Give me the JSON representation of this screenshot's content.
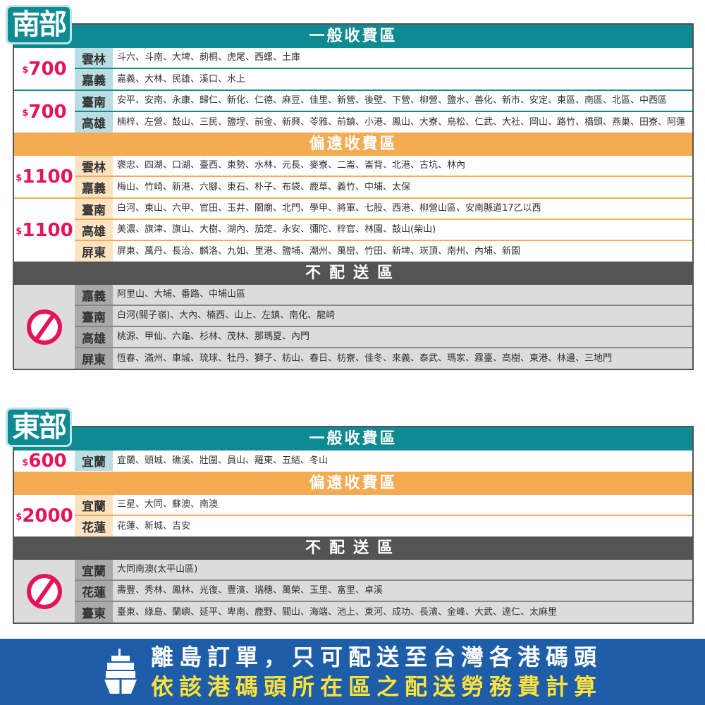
{
  "sections": [
    {
      "title": "南部",
      "blocks": [
        {
          "type": "general",
          "title": "一般收費區",
          "groups": [
            {
              "price": "700",
              "rows": [
                {
                  "county": "雲林",
                  "towns": "斗六、斗南、大埤、莿桐、虎尾、西螺、土庫"
                },
                {
                  "county": "嘉義",
                  "towns": "嘉義、大林、民雄、溪口、水上"
                }
              ]
            },
            {
              "price": "700",
              "rows": [
                {
                  "county": "臺南",
                  "towns": "安平、安南、永康、歸仁、新化、仁德、麻豆、佳里、新營、後壁、下營、柳營、鹽水、善化、新市、安定、東區、南區、北區、中西區"
                },
                {
                  "county": "高雄",
                  "towns": "楠梓、左營、鼓山、三民、鹽埕、前金、新興、苓雅、前鎮、小港、鳳山、大寮、鳥松、仁武、大社、岡山、路竹、橋頭、燕巢、田寮、阿蓮"
                }
              ]
            }
          ]
        },
        {
          "type": "remote",
          "title": "偏遠收費區",
          "groups": [
            {
              "price": "1100",
              "rows": [
                {
                  "county": "雲林",
                  "towns": "褒忠、四湖、口湖、臺西、東勢、水林、元長、麥寮、二崙、崙背、北港、古坑、林內"
                },
                {
                  "county": "嘉義",
                  "towns": "梅山、竹崎、新港、六腳、東石、朴子、布袋、鹿草、義竹、中埔、太保"
                }
              ]
            },
            {
              "price": "1100",
              "rows": [
                {
                  "county": "臺南",
                  "towns": "白河、東山、六甲、官田、玉井、關廟、北門、學甲、將軍、七股、西港、柳營山區、安南縣道17乙以西"
                },
                {
                  "county": "高雄",
                  "towns": "美濃、旗津、旗山、大樹、湖內、茄萣、永安、彌陀、梓官、林園、鼓山(柴山)"
                },
                {
                  "county": "屏東",
                  "towns": "屏東、萬丹、長治、麟洛、九如、里港、鹽埔、潮州、萬巒、竹田、新埤、崁頂、南州、內埔、新園"
                }
              ]
            }
          ]
        },
        {
          "type": "none",
          "title": "不配送區",
          "groups": [
            {
              "price": null,
              "rows": [
                {
                  "county": "嘉義",
                  "towns": "阿里山、大埔、番路、中埔山區"
                },
                {
                  "county": "臺南",
                  "towns": "白河(關子嶺)、大內、楠西、山上、左鎮、南化、龍崎"
                },
                {
                  "county": "高雄",
                  "towns": "桃源、甲仙、六龜、杉林、茂林、那瑪夏、內門"
                },
                {
                  "county": "屏東",
                  "towns": "恆春、滿州、車城、琉球、牡丹、獅子、枋山、春日、枋寮、佳冬、來義、泰武、瑪家、霧臺、高樹、東港、林邊、三地門"
                }
              ]
            }
          ]
        }
      ]
    },
    {
      "title": "東部",
      "blocks": [
        {
          "type": "general",
          "title": "一般收費區",
          "groups": [
            {
              "price": "600",
              "rows": [
                {
                  "county": "宜蘭",
                  "towns": "宜蘭、頭城、礁溪、壯圍、員山、羅東、五結、冬山"
                }
              ]
            }
          ]
        },
        {
          "type": "remote",
          "title": "偏遠收費區",
          "groups": [
            {
              "price": "2000",
              "rows": [
                {
                  "county": "宜蘭",
                  "towns": "三星、大同、蘇澳、南澳"
                },
                {
                  "county": "花蓮",
                  "towns": "花蓮、新城、吉安"
                }
              ]
            }
          ]
        },
        {
          "type": "none",
          "title": "不配送區",
          "groups": [
            {
              "price": null,
              "rows": [
                {
                  "county": "宜蘭",
                  "towns": "大同南澳(太平山區)"
                },
                {
                  "county": "花蓮",
                  "towns": "壽豐、秀林、鳳林、光復、豐濱、瑞穗、萬榮、玉里、富里、卓溪"
                },
                {
                  "county": "臺東",
                  "towns": "臺東、綠島、蘭嶼、延平、卑南、鹿野、關山、海端、池上、東河、成功、長濱、金峰、大武、達仁、太麻里"
                }
              ]
            }
          ]
        }
      ]
    }
  ],
  "currency_symbol": "$",
  "banner": {
    "line1": "離島訂單，只可配送至台灣各港碼頭",
    "line2": "依該港碼頭所在區之配送勞務費計算",
    "icon": "ship-icon"
  },
  "colors": {
    "teal": "#0e8a93",
    "orange": "#f4ab52",
    "dark": "#545454",
    "price": "#e4145a",
    "banner": "#1e5ea8",
    "banner_highlight": "#ffe23b"
  }
}
